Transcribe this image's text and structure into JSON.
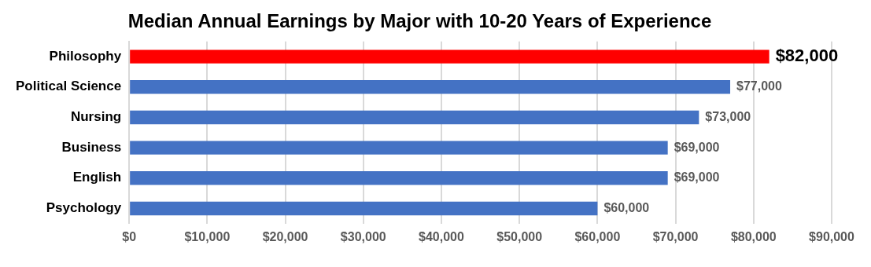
{
  "chart_data": {
    "type": "bar",
    "orientation": "horizontal",
    "title": "Median Annual Earnings by Major with 10-20 Years of Experience",
    "categories": [
      "Philosophy",
      "Political Science",
      "Nursing",
      "Business",
      "English",
      "Psychology"
    ],
    "values": [
      82000,
      77000,
      73000,
      69000,
      69000,
      60000
    ],
    "colors": [
      "#ff0000",
      "#4472c4",
      "#4472c4",
      "#4472c4",
      "#4472c4",
      "#4472c4"
    ],
    "value_labels": [
      "$82,000",
      "$77,000",
      "$73,000",
      "$69,000",
      "$69,000",
      "$60,000"
    ],
    "xlim": [
      0,
      90000
    ],
    "xticks": [
      {
        "value": 0,
        "label": "$0"
      },
      {
        "value": 10000,
        "label": "$10,000"
      },
      {
        "value": 20000,
        "label": "$20,000"
      },
      {
        "value": 30000,
        "label": "$30,000"
      },
      {
        "value": 40000,
        "label": "$40,000"
      },
      {
        "value": 50000,
        "label": "$50,000"
      },
      {
        "value": 60000,
        "label": "$60,000"
      },
      {
        "value": 70000,
        "label": "$70,000"
      },
      {
        "value": 80000,
        "label": "$80,000"
      },
      {
        "value": 90000,
        "label": "$90,000"
      }
    ],
    "grid": "x",
    "legend": false
  }
}
